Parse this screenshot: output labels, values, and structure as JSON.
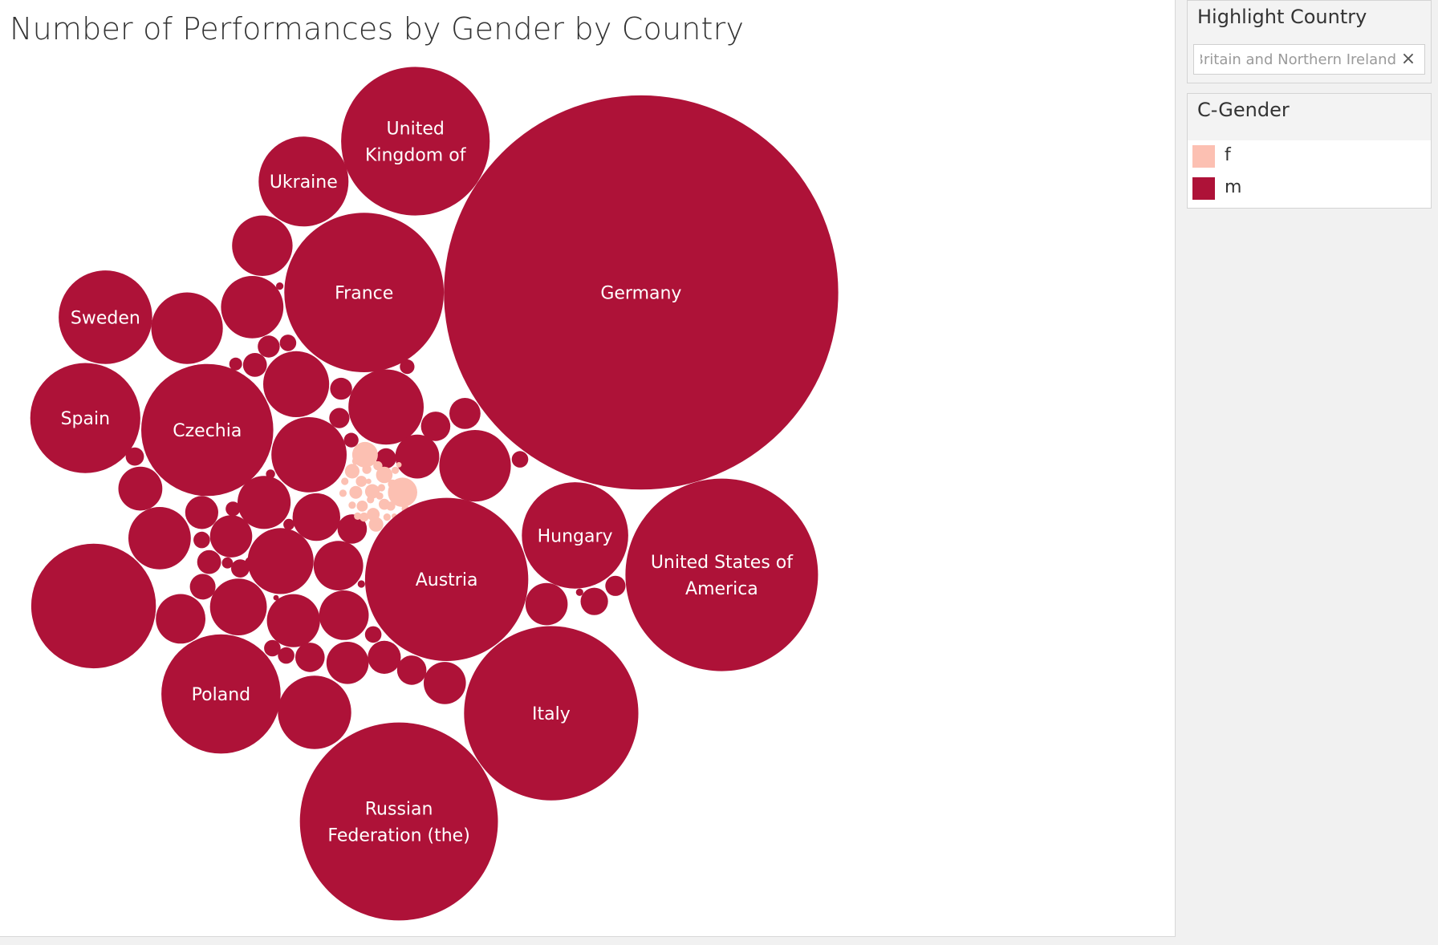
{
  "title": "Number of Performances by Gender by Country",
  "colors": {
    "f": "#fcc0b2",
    "m": "#ae1238",
    "label_text": "#ffffff"
  },
  "filter": {
    "title": "Highlight Country",
    "value": "United Kingdom of Great Britain and Northern Ireland",
    "clear_icon": "close-icon"
  },
  "legend": {
    "title": "C-Gender",
    "items": [
      {
        "label": "f",
        "color": "#fcc0b2"
      },
      {
        "label": "m",
        "color": "#ae1238"
      }
    ]
  },
  "chart_data": {
    "type": "bubble",
    "title": "Number of Performances by Gender by Country",
    "size_measure": "Number of Performances",
    "color_dimension": "C-Gender",
    "labeled_bubbles": [
      {
        "country": "Germany",
        "gender": "m",
        "label": "Germany"
      },
      {
        "country": "United States of America",
        "gender": "m",
        "label": "United States of America"
      },
      {
        "country": "Russian Federation (the)",
        "gender": "m",
        "label": "Russian Federation (the)"
      },
      {
        "country": "Italy",
        "gender": "m",
        "label": "Italy"
      },
      {
        "country": "Austria",
        "gender": "m",
        "label": "Austria"
      },
      {
        "country": "France",
        "gender": "m",
        "label": "France"
      },
      {
        "country": "United Kingdom of Great Britain and Northern Ireland",
        "gender": "m",
        "label": "United Kingdom of"
      },
      {
        "country": "Czechia",
        "gender": "m",
        "label": "Czechia"
      },
      {
        "country": "Poland",
        "gender": "m",
        "label": "Poland"
      },
      {
        "country": "Spain",
        "gender": "m",
        "label": "Spain"
      },
      {
        "country": "Hungary",
        "gender": "m",
        "label": "Hungary"
      },
      {
        "country": "Sweden",
        "gender": "m",
        "label": "Sweden"
      },
      {
        "country": "Ukraine",
        "gender": "m",
        "label": "Ukraine"
      }
    ],
    "unlabeled_bubble_counts": {
      "m": 60,
      "f": 30
    }
  }
}
